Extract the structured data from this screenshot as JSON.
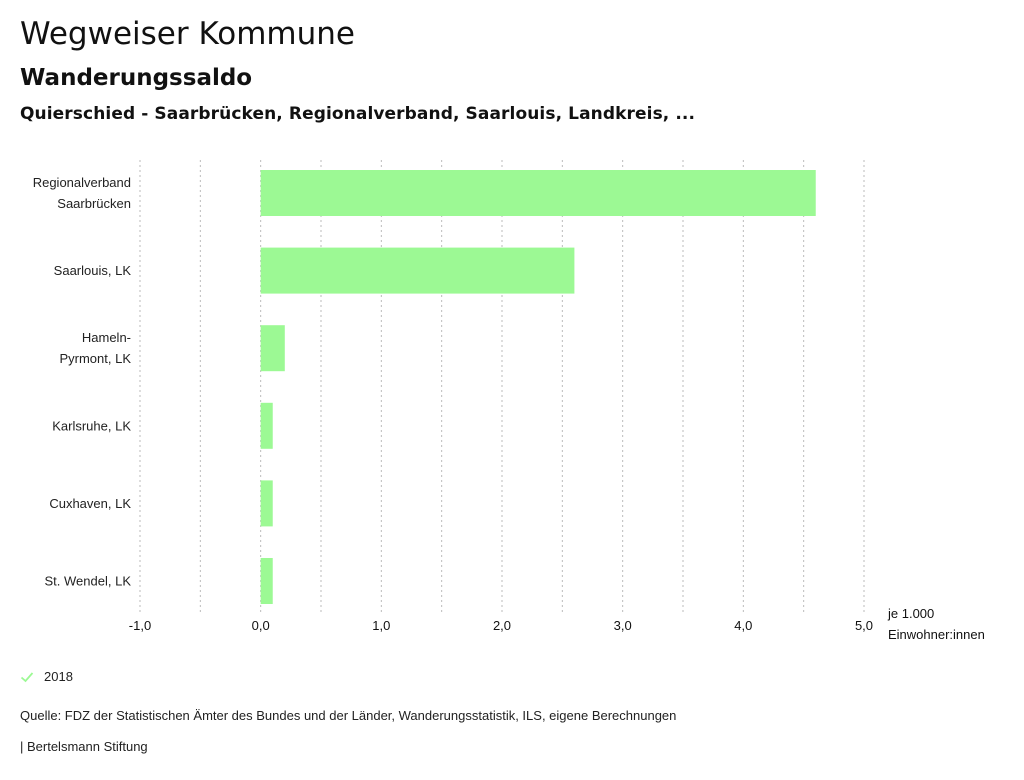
{
  "header": {
    "title": "Wegweiser Kommune",
    "subtitle": "Wanderungssaldo",
    "regions": "Quierschied - Saarbrücken, Regionalverband, Saarlouis, Landkreis, ..."
  },
  "chart_data": {
    "type": "bar",
    "orientation": "horizontal",
    "title": "Wanderungssaldo",
    "categories": [
      [
        "Regionalverband",
        "Saarbrücken"
      ],
      [
        "Saarlouis, LK"
      ],
      [
        "Hameln-",
        "Pyrmont, LK"
      ],
      [
        "Karlsruhe, LK"
      ],
      [
        "Cuxhaven, LK"
      ],
      [
        "St. Wendel, LK"
      ]
    ],
    "series": [
      {
        "name": "2018",
        "color": "#9cf994",
        "values": [
          4.6,
          2.6,
          0.2,
          0.1,
          0.1,
          0.1
        ]
      }
    ],
    "xlim": [
      -1.0,
      5.0
    ],
    "xticks": [
      -1.0,
      0.0,
      1.0,
      2.0,
      3.0,
      4.0,
      5.0
    ],
    "xtick_labels": [
      "-1,0",
      "0,0",
      "1,0",
      "2,0",
      "3,0",
      "4,0",
      "5,0"
    ],
    "gridlines": [
      -1.0,
      -0.5,
      0.0,
      0.5,
      1.0,
      1.5,
      2.0,
      2.5,
      3.0,
      3.5,
      4.0,
      4.5,
      5.0
    ],
    "grid": true,
    "grid_style": "dotted",
    "grid_color": "#bbbbbb",
    "xlabel": [
      "je 1.000",
      "Einwohner:innen"
    ],
    "ylabel": "",
    "legend_position": "bottom-left"
  },
  "legend": {
    "items": [
      {
        "label": "2018",
        "color": "#9cf994",
        "icon": "check-icon"
      }
    ]
  },
  "footer": {
    "source": "Quelle: FDZ der Statistischen Ämter des Bundes und der Länder, Wanderungsstatistik, ILS, eigene Berechnungen",
    "credit": "| Bertelsmann Stiftung"
  }
}
